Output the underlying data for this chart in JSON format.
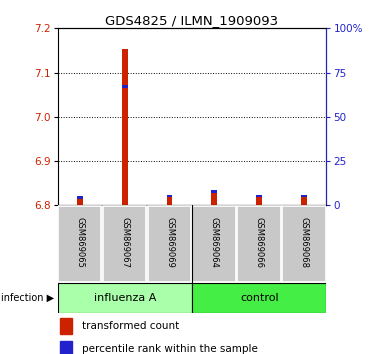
{
  "title": "GDS4825 / ILMN_1909093",
  "samples": [
    "GSM869065",
    "GSM869067",
    "GSM869069",
    "GSM869064",
    "GSM869066",
    "GSM869068"
  ],
  "transformed_counts": [
    6.821,
    7.153,
    6.821,
    6.832,
    6.821,
    6.821
  ],
  "percentile_ranks": [
    6.815,
    7.065,
    6.818,
    6.828,
    6.818,
    6.818
  ],
  "ylim_left": [
    6.8,
    7.2
  ],
  "yticks_left": [
    6.8,
    6.9,
    7.0,
    7.1,
    7.2
  ],
  "yticks_right": [
    0,
    25,
    50,
    75,
    100
  ],
  "ylabel_left_color": "#CC2200",
  "ylabel_right_color": "#2222CC",
  "bar_color_red": "#CC2200",
  "bar_color_blue": "#2222CC",
  "legend_red_label": "transformed count",
  "legend_blue_label": "percentile rank within the sample",
  "influenza_color": "#AAFFAA",
  "control_color": "#44EE44",
  "sample_box_color": "#C8C8C8",
  "n_samples": 6,
  "n_influenza": 3
}
